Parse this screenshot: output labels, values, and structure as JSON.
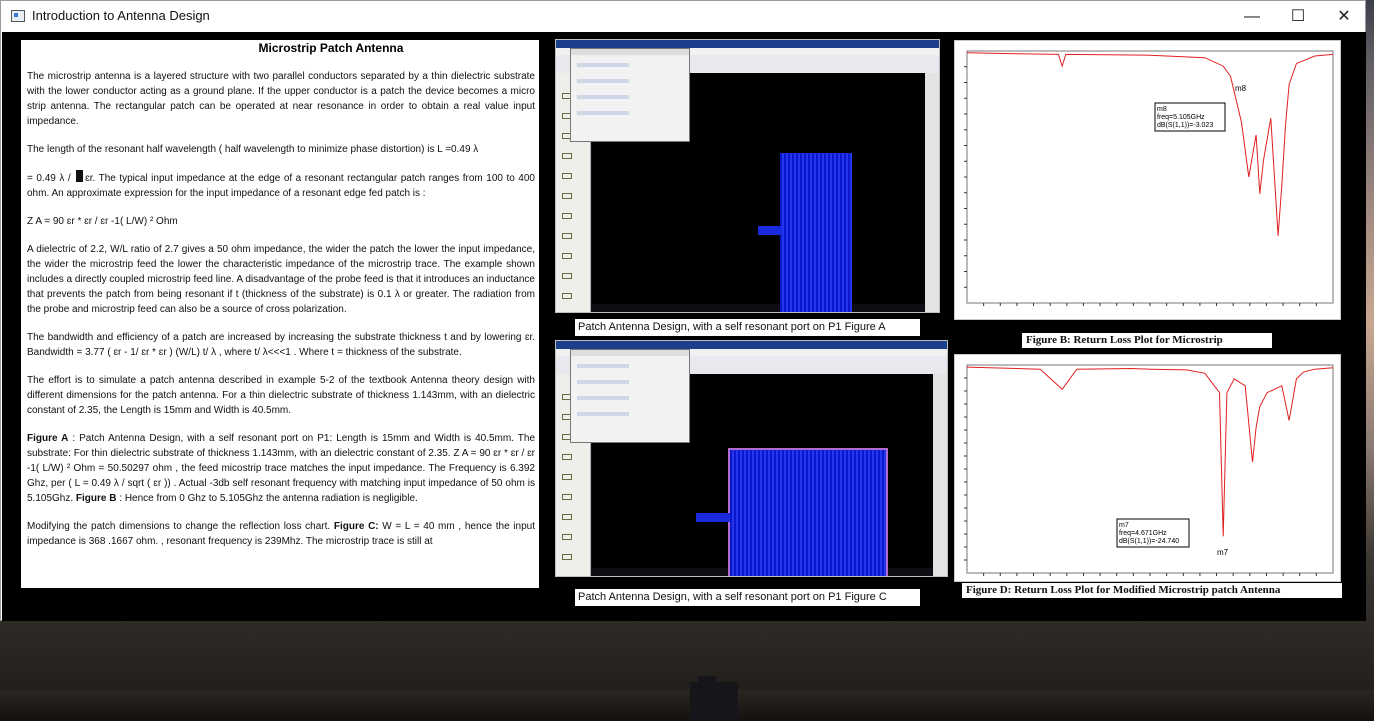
{
  "window": {
    "title": "Introduction to Antenna Design"
  },
  "window_buttons": {
    "minimize": "—",
    "maximize": "☐",
    "close": "✕"
  },
  "text": {
    "heading": "Microstrip Patch Antenna",
    "p1": "The microstrip antenna is a layered structure with two parallel conductors separated by a thin dielectric substrate with the lower conductor acting as  a ground plane.  If the upper conductor is a patch the device becomes a micro strip antenna.  The rectangular patch can be  operated at near resonance in order to obtain a real value input impedance.",
    "p2": "The length of the resonant half wavelength ( half wavelength to minimize phase distortion)  is L =0.49 λ",
    "p3a": "= 0.49 λ / ",
    "p3b": "ɛr.  The typical input impedance at the edge of a resonant rectangular patch ranges from 100 to 400 ohm.  An approximate expression for the input impedance of a resonant edge fed patch is :",
    "p4": "Z A =  90 ɛr * ɛr / ɛr -1( L/W) ²     Ohm",
    "p5": " A dielectric of 2.2, W/L ratio of 2.7 gives a 50 ohm impedance, the wider the patch the lower the input impedance, the wider the microstrip feed the lower the characteristic impedance of the microstrip trace.  The example shown includes a directly coupled microstrip feed line. A disadvantage of the probe feed is that it introduces an inductance that prevents the patch from being resonant if t (thickness of the substrate) is 0.1  λ  or greater. The radiation from the probe and microstrip feed can also be a source of cross polarization.",
    "p6": "The bandwidth and efficiency of a patch are increased by increasing the substrate thickness t and by lowering  ɛr.  Bandwidth = 3.77 ( ɛr  -  1/ ɛr * ɛr ) (W/L) t/ λ  ,  where t/ λ<<<1  .  Where t = thickness of the substrate.",
    "p7": "The effort is to simulate a patch antenna described in example 5-2 of the textbook Antenna theory design with different dimensions for the patch antenna.  For  a thin dielectric substrate of thickness 1.143mm, with an dielectric constant of 2.35, the Length is 15mm and Width is 40.5mm.",
    "p8_label": "Figure A",
    "p8": " : Patch Antenna Design, with a self resonant port on P1: Length is 15mm and Width is 40.5mm. The substrate: For  thin dielectric substrate of thickness 1.143mm, with an dielectric constant of 2.35.  Z A =  90 ɛr * ɛr / ɛr -1( L/W) ²     Ohm    = 50.50297 ohm , the feed micostrip trace matches the input impedance. The Frequency is 6.392 Ghz, per ( L = 0.49  λ / sqrt ( ɛr  )) . Actual -3db self resonant frequency with matching input impedance of 50 ohm is 5.105Ghz.  ",
    "p8_label2": "Figure B",
    "p8b": " : Hence from 0 Ghz to 5.105Ghz the antenna radiation is negligible.",
    "p9a": "Modifying the patch dimensions to change the  reflection loss chart.  ",
    "p9_label": "Figure C:",
    "p9b": "  W = L = 40 mm , hence the input impedance is 368 .1667 ohm. , resonant frequency is 239Mhz. The microstrip trace is still at"
  },
  "figures": {
    "a_caption": "Patch Antenna Design, with a self resonant port on P1 Figure A",
    "c_caption": "Patch Antenna Design, with a self resonant port on P1 Figure C",
    "b_caption": "Figure B: Return Loss Plot for Microstrip",
    "d_caption": "Figure D: Return Loss Plot for Modified Microstrip patch Antenna"
  },
  "chart_data": [
    {
      "type": "line",
      "name": "figure-b",
      "title": "",
      "xlabel": "",
      "ylabel": "",
      "marker_label": "m8",
      "marker_text": [
        "m8",
        "freq=5.105GHz",
        "dB(S(1,1))=-3.023"
      ],
      "color": "#e02020",
      "ylim": [
        -30,
        0
      ],
      "xlim": [
        0,
        1
      ],
      "x": [
        0,
        0.1,
        0.25,
        0.26,
        0.27,
        0.5,
        0.65,
        0.7,
        0.72,
        0.75,
        0.77,
        0.79,
        0.8,
        0.81,
        0.83,
        0.85,
        0.86,
        0.87,
        0.88,
        0.9,
        0.95,
        1
      ],
      "values": [
        -0.2,
        -0.3,
        -0.4,
        -1.8,
        -0.4,
        -0.5,
        -0.8,
        -1.8,
        -3.0,
        -8.5,
        -15,
        -10,
        -17,
        -13,
        -8,
        -22,
        -16,
        -9,
        -4,
        -1.5,
        -0.6,
        -0.4
      ]
    },
    {
      "type": "line",
      "name": "figure-d",
      "title": "",
      "xlabel": "",
      "ylabel": "",
      "marker_label": "m7",
      "marker_text": [
        "m7",
        "freq=4.671GHz",
        "dB(S(1,1))=-24.740"
      ],
      "color": "#e02020",
      "ylim": [
        -30,
        0
      ],
      "xlim": [
        0,
        1
      ],
      "x": [
        0,
        0.2,
        0.26,
        0.3,
        0.45,
        0.5,
        0.6,
        0.65,
        0.69,
        0.7,
        0.71,
        0.73,
        0.76,
        0.78,
        0.79,
        0.8,
        0.82,
        0.86,
        0.88,
        0.9,
        0.92,
        0.95,
        1
      ],
      "values": [
        -0.3,
        -0.6,
        -3.5,
        -0.6,
        -0.5,
        -0.6,
        -0.7,
        -1.2,
        -4,
        -24.7,
        -4,
        -2,
        -3,
        -14,
        -9,
        -6,
        -4,
        -3,
        -8,
        -2,
        -1,
        -0.6,
        -0.4
      ]
    }
  ]
}
